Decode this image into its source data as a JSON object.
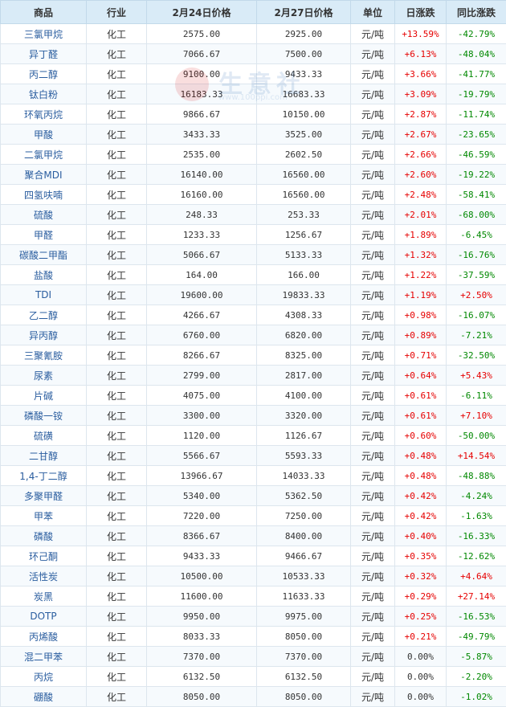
{
  "headers": [
    "商品",
    "行业",
    "2月24日价格",
    "2月27日价格",
    "单位",
    "日涨跌",
    "同比涨跌"
  ],
  "watermark": {
    "text": "生意社",
    "url": "www.100ppi.com"
  },
  "rows": [
    {
      "name": "三氯甲烷",
      "industry": "化工",
      "p1": "2575.00",
      "p2": "2925.00",
      "unit": "元/吨",
      "daily": "+13.59%",
      "yoy": "-42.79%"
    },
    {
      "name": "异丁醛",
      "industry": "化工",
      "p1": "7066.67",
      "p2": "7500.00",
      "unit": "元/吨",
      "daily": "+6.13%",
      "yoy": "-48.04%"
    },
    {
      "name": "丙二醇",
      "industry": "化工",
      "p1": "9100.00",
      "p2": "9433.33",
      "unit": "元/吨",
      "daily": "+3.66%",
      "yoy": "-41.77%"
    },
    {
      "name": "钛白粉",
      "industry": "化工",
      "p1": "16183.33",
      "p2": "16683.33",
      "unit": "元/吨",
      "daily": "+3.09%",
      "yoy": "-19.79%"
    },
    {
      "name": "环氧丙烷",
      "industry": "化工",
      "p1": "9866.67",
      "p2": "10150.00",
      "unit": "元/吨",
      "daily": "+2.87%",
      "yoy": "-11.74%"
    },
    {
      "name": "甲酸",
      "industry": "化工",
      "p1": "3433.33",
      "p2": "3525.00",
      "unit": "元/吨",
      "daily": "+2.67%",
      "yoy": "-23.65%"
    },
    {
      "name": "二氯甲烷",
      "industry": "化工",
      "p1": "2535.00",
      "p2": "2602.50",
      "unit": "元/吨",
      "daily": "+2.66%",
      "yoy": "-46.59%"
    },
    {
      "name": "聚合MDI",
      "industry": "化工",
      "p1": "16140.00",
      "p2": "16560.00",
      "unit": "元/吨",
      "daily": "+2.60%",
      "yoy": "-19.22%"
    },
    {
      "name": "四氢呋喃",
      "industry": "化工",
      "p1": "16160.00",
      "p2": "16560.00",
      "unit": "元/吨",
      "daily": "+2.48%",
      "yoy": "-58.41%"
    },
    {
      "name": "硫酸",
      "industry": "化工",
      "p1": "248.33",
      "p2": "253.33",
      "unit": "元/吨",
      "daily": "+2.01%",
      "yoy": "-68.00%"
    },
    {
      "name": "甲醛",
      "industry": "化工",
      "p1": "1233.33",
      "p2": "1256.67",
      "unit": "元/吨",
      "daily": "+1.89%",
      "yoy": "-6.45%"
    },
    {
      "name": "碳酸二甲酯",
      "industry": "化工",
      "p1": "5066.67",
      "p2": "5133.33",
      "unit": "元/吨",
      "daily": "+1.32%",
      "yoy": "-16.76%"
    },
    {
      "name": "盐酸",
      "industry": "化工",
      "p1": "164.00",
      "p2": "166.00",
      "unit": "元/吨",
      "daily": "+1.22%",
      "yoy": "-37.59%"
    },
    {
      "name": "TDI",
      "industry": "化工",
      "p1": "19600.00",
      "p2": "19833.33",
      "unit": "元/吨",
      "daily": "+1.19%",
      "yoy": "+2.50%"
    },
    {
      "name": "乙二醇",
      "industry": "化工",
      "p1": "4266.67",
      "p2": "4308.33",
      "unit": "元/吨",
      "daily": "+0.98%",
      "yoy": "-16.07%"
    },
    {
      "name": "异丙醇",
      "industry": "化工",
      "p1": "6760.00",
      "p2": "6820.00",
      "unit": "元/吨",
      "daily": "+0.89%",
      "yoy": "-7.21%"
    },
    {
      "name": "三聚氰胺",
      "industry": "化工",
      "p1": "8266.67",
      "p2": "8325.00",
      "unit": "元/吨",
      "daily": "+0.71%",
      "yoy": "-32.50%"
    },
    {
      "name": "尿素",
      "industry": "化工",
      "p1": "2799.00",
      "p2": "2817.00",
      "unit": "元/吨",
      "daily": "+0.64%",
      "yoy": "+5.43%"
    },
    {
      "name": "片碱",
      "industry": "化工",
      "p1": "4075.00",
      "p2": "4100.00",
      "unit": "元/吨",
      "daily": "+0.61%",
      "yoy": "-6.11%"
    },
    {
      "name": "磷酸一铵",
      "industry": "化工",
      "p1": "3300.00",
      "p2": "3320.00",
      "unit": "元/吨",
      "daily": "+0.61%",
      "yoy": "+7.10%"
    },
    {
      "name": "硫磺",
      "industry": "化工",
      "p1": "1120.00",
      "p2": "1126.67",
      "unit": "元/吨",
      "daily": "+0.60%",
      "yoy": "-50.00%"
    },
    {
      "name": "二甘醇",
      "industry": "化工",
      "p1": "5566.67",
      "p2": "5593.33",
      "unit": "元/吨",
      "daily": "+0.48%",
      "yoy": "+14.54%"
    },
    {
      "name": "1,4-丁二醇",
      "industry": "化工",
      "p1": "13966.67",
      "p2": "14033.33",
      "unit": "元/吨",
      "daily": "+0.48%",
      "yoy": "-48.88%"
    },
    {
      "name": "多聚甲醛",
      "industry": "化工",
      "p1": "5340.00",
      "p2": "5362.50",
      "unit": "元/吨",
      "daily": "+0.42%",
      "yoy": "-4.24%"
    },
    {
      "name": "甲苯",
      "industry": "化工",
      "p1": "7220.00",
      "p2": "7250.00",
      "unit": "元/吨",
      "daily": "+0.42%",
      "yoy": "-1.63%"
    },
    {
      "name": "磷酸",
      "industry": "化工",
      "p1": "8366.67",
      "p2": "8400.00",
      "unit": "元/吨",
      "daily": "+0.40%",
      "yoy": "-16.33%"
    },
    {
      "name": "环己酮",
      "industry": "化工",
      "p1": "9433.33",
      "p2": "9466.67",
      "unit": "元/吨",
      "daily": "+0.35%",
      "yoy": "-12.62%"
    },
    {
      "name": "活性炭",
      "industry": "化工",
      "p1": "10500.00",
      "p2": "10533.33",
      "unit": "元/吨",
      "daily": "+0.32%",
      "yoy": "+4.64%"
    },
    {
      "name": "炭黑",
      "industry": "化工",
      "p1": "11600.00",
      "p2": "11633.33",
      "unit": "元/吨",
      "daily": "+0.29%",
      "yoy": "+27.14%"
    },
    {
      "name": "DOTP",
      "industry": "化工",
      "p1": "9950.00",
      "p2": "9975.00",
      "unit": "元/吨",
      "daily": "+0.25%",
      "yoy": "-16.53%"
    },
    {
      "name": "丙烯酸",
      "industry": "化工",
      "p1": "8033.33",
      "p2": "8050.00",
      "unit": "元/吨",
      "daily": "+0.21%",
      "yoy": "-49.79%"
    },
    {
      "name": "混二甲苯",
      "industry": "化工",
      "p1": "7370.00",
      "p2": "7370.00",
      "unit": "元/吨",
      "daily": "0.00%",
      "yoy": "-5.87%"
    },
    {
      "name": "丙烷",
      "industry": "化工",
      "p1": "6132.50",
      "p2": "6132.50",
      "unit": "元/吨",
      "daily": "0.00%",
      "yoy": "-2.20%"
    },
    {
      "name": "硼酸",
      "industry": "化工",
      "p1": "8050.00",
      "p2": "8050.00",
      "unit": "元/吨",
      "daily": "0.00%",
      "yoy": "-1.02%"
    }
  ]
}
